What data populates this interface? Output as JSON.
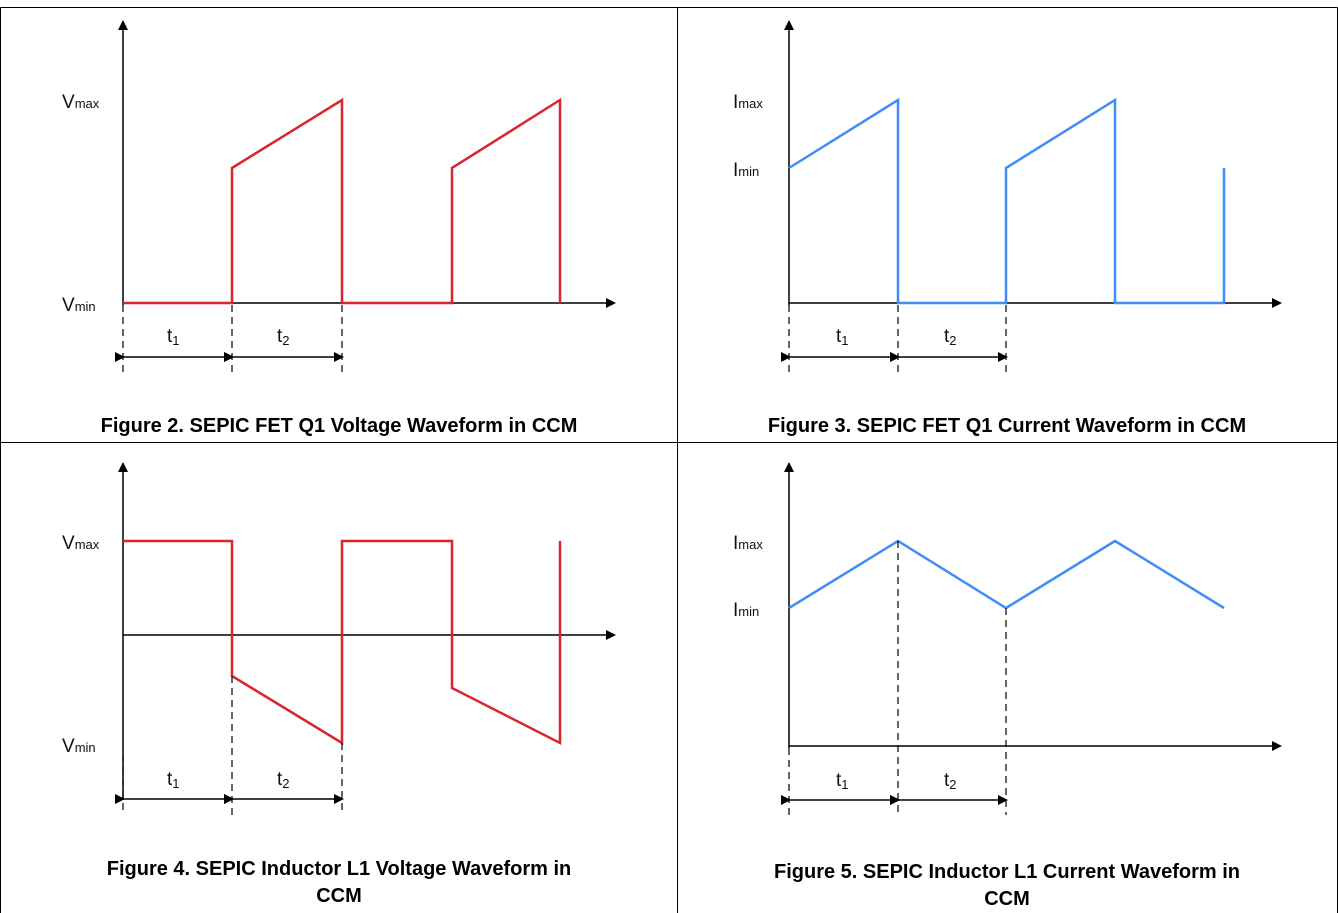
{
  "figures": [
    {
      "id": "fig2",
      "caption_lines": [
        "Figure 2. SEPIC FET Q1 Voltage Waveform in CCM"
      ],
      "color": "#d9262b",
      "y_labels": [
        {
          "main": "V",
          "sub": "max"
        },
        {
          "main": "V",
          "sub": "min"
        }
      ],
      "t_labels": [
        {
          "main": "t",
          "sub": "1"
        },
        {
          "main": "t",
          "sub": "2"
        }
      ]
    },
    {
      "id": "fig3",
      "caption_lines": [
        "Figure 3. SEPIC FET Q1 Current Waveform in CCM"
      ],
      "color": "#3f8ef5",
      "y_labels": [
        {
          "main": "I",
          "sub": "max"
        },
        {
          "main": "I",
          "sub": "min"
        }
      ],
      "t_labels": [
        {
          "main": "t",
          "sub": "1"
        },
        {
          "main": "t",
          "sub": "2"
        }
      ]
    },
    {
      "id": "fig4",
      "caption_lines": [
        "Figure 4. SEPIC Inductor L1 Voltage Waveform in",
        "CCM"
      ],
      "color": "#d9262b",
      "y_labels": [
        {
          "main": "V",
          "sub": "max"
        },
        {
          "main": "V",
          "sub": "min"
        }
      ],
      "t_labels": [
        {
          "main": "t",
          "sub": "1"
        },
        {
          "main": "t",
          "sub": "2"
        }
      ]
    },
    {
      "id": "fig5",
      "caption_lines": [
        "Figure 5. SEPIC Inductor L1 Current Waveform in",
        "CCM"
      ],
      "color": "#3f8ef5",
      "y_labels": [
        {
          "main": "I",
          "sub": "max"
        },
        {
          "main": "I",
          "sub": "min"
        }
      ],
      "t_labels": [
        {
          "main": "t",
          "sub": "1"
        },
        {
          "main": "t",
          "sub": "2"
        }
      ]
    }
  ]
}
